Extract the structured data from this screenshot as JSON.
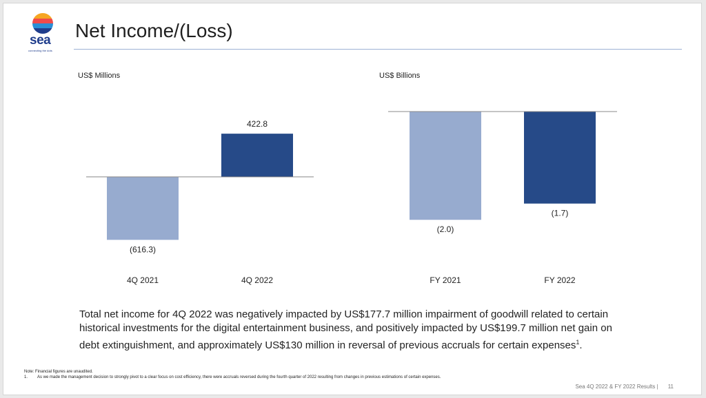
{
  "logo": {
    "wordmark": "sea",
    "tagline": "connecting the dots"
  },
  "title": "Net Income/(Loss)",
  "colors": {
    "light_bar": "#97abcf",
    "dark_bar": "#264a88",
    "axis": "#888888",
    "rule": "#9db1d4"
  },
  "chart_data": [
    {
      "type": "bar",
      "unit_label": "US$ Millions",
      "categories": [
        "4Q 2021",
        "4Q 2022"
      ],
      "values": [
        -616.3,
        422.8
      ],
      "data_labels": [
        "(616.3)",
        "422.8"
      ],
      "ylim": [
        -850,
        700
      ],
      "grid": false
    },
    {
      "type": "bar",
      "unit_label": "US$ Billions",
      "categories": [
        "FY 2021",
        "FY 2022"
      ],
      "values": [
        -2.0,
        -1.7
      ],
      "data_labels": [
        "(2.0)",
        "(1.7)"
      ],
      "ylim": [
        -2.9,
        0
      ],
      "grid": false
    }
  ],
  "body_text": "Total net income for 4Q 2022 was negatively impacted by US$177.7 million impairment of goodwill related to certain historical investments for the digital entertainment business, and positively impacted by US$199.7 million net gain on debt extinguishment, and approximately US$130 million in reversal of previous accruals for certain expenses",
  "body_superscript": "1",
  "body_end": ".",
  "notes": {
    "line1": "Note: Financial figures are unaudited.",
    "line2_num": "1.",
    "line2": "As we made the management decision to strongly pivot to a clear focus on cost efficiency, there were accruals reversed during the fourth quarter of 2022 resulting from changes in previous estimations of certain expenses."
  },
  "footer": {
    "text": "Sea 4Q 2022 & FY 2022 Results |",
    "page": "11"
  }
}
